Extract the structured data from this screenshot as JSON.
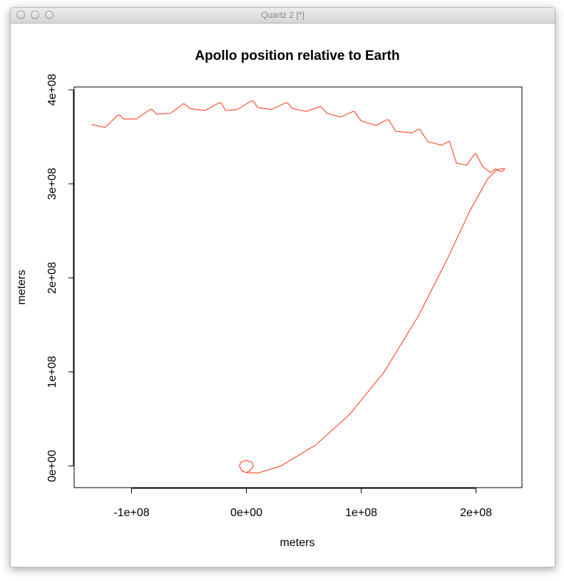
{
  "window": {
    "title": "Quartz 2 [*]"
  },
  "chart_data": {
    "type": "line",
    "title": "Apollo position relative to Earth",
    "xlabel": "meters",
    "ylabel": "meters",
    "xlim": [
      -150000000,
      240000000
    ],
    "ylim": [
      -23000000,
      403000000
    ],
    "x_ticks": [
      {
        "value": -100000000,
        "label": "-1e+08"
      },
      {
        "value": 0,
        "label": "0e+00"
      },
      {
        "value": 100000000,
        "label": "1e+08"
      },
      {
        "value": 200000000,
        "label": "2e+08"
      }
    ],
    "y_ticks": [
      {
        "value": 0,
        "label": "0e+00"
      },
      {
        "value": 100000000,
        "label": "1e+08"
      },
      {
        "value": 200000000,
        "label": "2e+08"
      },
      {
        "value": 300000000,
        "label": "3e+08"
      },
      {
        "value": 400000000,
        "label": "4e+08"
      }
    ],
    "grid": false,
    "series": [
      {
        "color": "#ff4422",
        "x": [
          0,
          3000000,
          6000000,
          5000000,
          0,
          -5000000,
          -6000000,
          -4000000,
          0,
          10000000,
          30000000,
          60000000,
          90000000,
          120000000,
          150000000,
          175000000,
          195000000,
          210000000,
          218000000,
          222000000,
          225000000,
          223000000,
          219000000,
          217000000,
          213000000,
          206000000,
          200000000,
          199000000,
          192000000,
          183000000,
          177000000,
          176000000,
          170000000,
          158000000,
          151000000,
          150000000,
          144000000,
          130000000,
          124000000,
          122000000,
          113000000,
          100000000,
          94000000,
          93000000,
          82000000,
          70000000,
          65000000,
          64000000,
          52000000,
          40000000,
          36000000,
          34000000,
          22000000,
          10000000,
          6000000,
          4000000,
          -8000000,
          -18000000,
          -22000000,
          -24000000,
          -36000000,
          -49000000,
          -54000000,
          -55000000,
          -66000000,
          -78000000,
          -82000000,
          -84000000,
          -96000000,
          -107000000,
          -110000000,
          -112000000,
          -123000000,
          -135000000
        ],
        "y": [
          -7000000,
          -5000000,
          0,
          4000000,
          6000000,
          4000000,
          0,
          -5000000,
          -7000000,
          -7500000,
          0,
          22000000,
          55000000,
          100000000,
          160000000,
          220000000,
          272000000,
          305000000,
          315000000,
          316000000,
          316000000,
          313000000,
          314000000,
          316000000,
          312000000,
          318000000,
          332000000,
          332000000,
          320000000,
          322000000,
          345000000,
          345000000,
          341000000,
          345000000,
          358000000,
          358000000,
          354000000,
          356000000,
          368000000,
          368000000,
          362000000,
          367000000,
          377000000,
          377000000,
          371000000,
          375000000,
          382000000,
          382000000,
          377000000,
          380000000,
          386000000,
          386000000,
          379000000,
          381000000,
          388000000,
          388000000,
          379000000,
          378000000,
          386000000,
          386000000,
          378000000,
          380000000,
          385000000,
          385000000,
          375000000,
          374000000,
          379000000,
          379000000,
          369000000,
          369000000,
          373000000,
          373000000,
          360000000,
          363000000
        ]
      }
    ]
  }
}
